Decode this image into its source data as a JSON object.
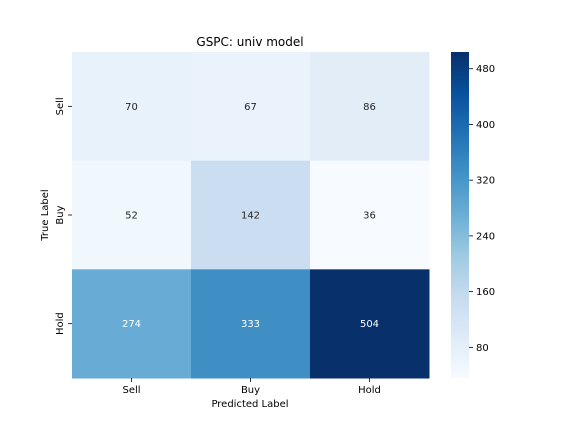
{
  "chart_data": {
    "type": "heatmap",
    "title": "GSPC: univ model",
    "xlabel": "Predicted Label",
    "ylabel": "True Label",
    "x_categories": [
      "Sell",
      "Buy",
      "Hold"
    ],
    "y_categories": [
      "Sell",
      "Buy",
      "Hold"
    ],
    "values": [
      [
        70,
        67,
        86
      ],
      [
        52,
        142,
        36
      ],
      [
        274,
        333,
        504
      ]
    ],
    "colormap": "Blues",
    "color_range": [
      36,
      504
    ],
    "colorbar_ticks": [
      80,
      160,
      240,
      320,
      400,
      480
    ],
    "colorbar_tick_labels": [
      "80",
      "160",
      "240",
      "320",
      "400",
      "480"
    ],
    "grid": false
  }
}
